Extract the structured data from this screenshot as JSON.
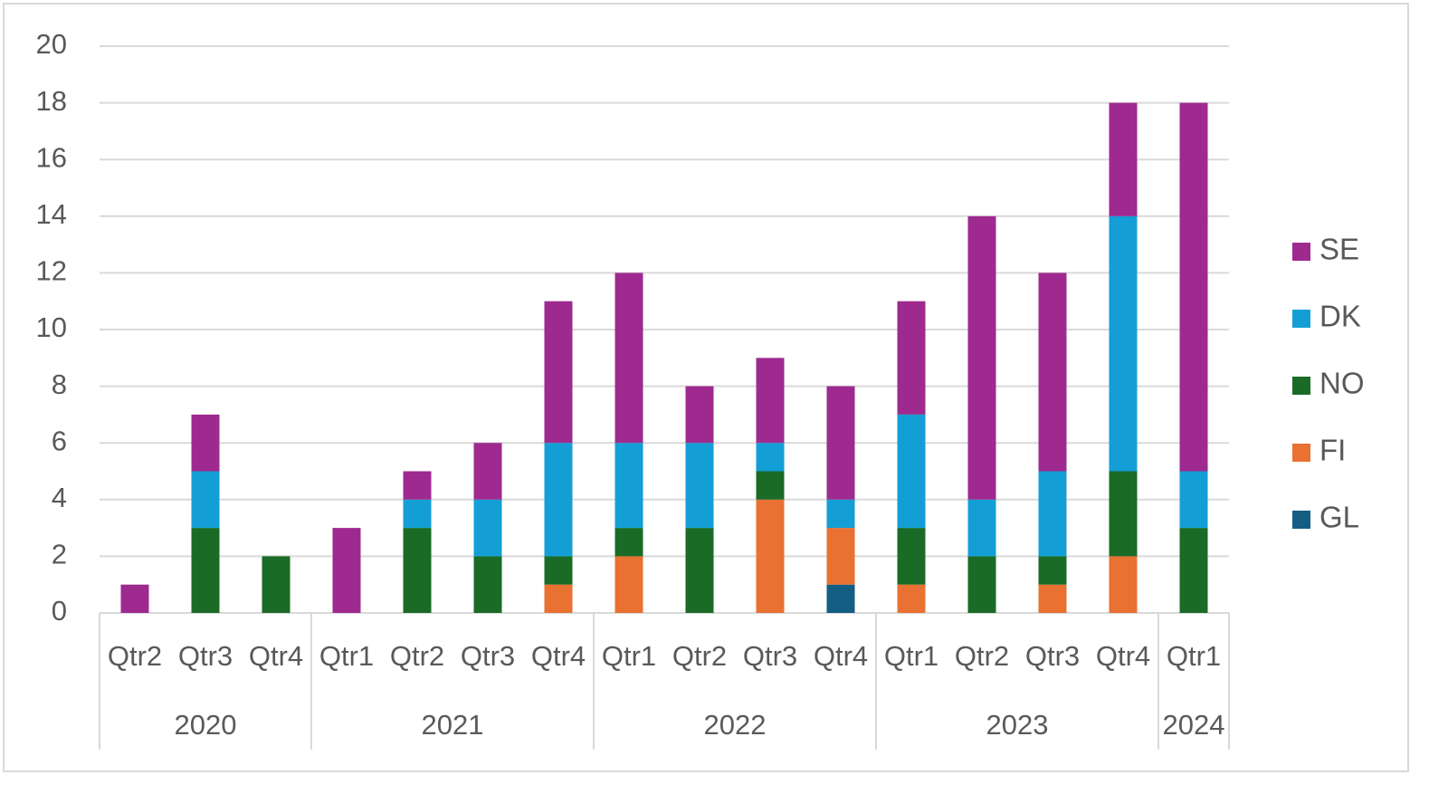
{
  "chart_data": {
    "type": "stacked-bar",
    "groups": [
      {
        "name": "2020",
        "categories": [
          "Qtr2",
          "Qtr3",
          "Qtr4"
        ]
      },
      {
        "name": "2021",
        "categories": [
          "Qtr1",
          "Qtr2",
          "Qtr3",
          "Qtr4"
        ]
      },
      {
        "name": "2022",
        "categories": [
          "Qtr1",
          "Qtr2",
          "Qtr3",
          "Qtr4"
        ]
      },
      {
        "name": "2023",
        "categories": [
          "Qtr1",
          "Qtr2",
          "Qtr3",
          "Qtr4"
        ]
      },
      {
        "name": "2024",
        "categories": [
          "Qtr1"
        ]
      }
    ],
    "series": [
      {
        "name": "GL",
        "color": "#145e84",
        "values": [
          0,
          0,
          0,
          0,
          0,
          0,
          0,
          0,
          0,
          0,
          1,
          0,
          0,
          0,
          0,
          0
        ]
      },
      {
        "name": "FI",
        "color": "#e97132",
        "values": [
          0,
          0,
          0,
          0,
          0,
          0,
          1,
          2,
          0,
          4,
          2,
          1,
          0,
          1,
          2,
          0
        ]
      },
      {
        "name": "NO",
        "color": "#1a6b26",
        "values": [
          0,
          3,
          2,
          0,
          3,
          2,
          1,
          1,
          3,
          1,
          0,
          2,
          2,
          1,
          3,
          3
        ]
      },
      {
        "name": "DK",
        "color": "#139fd6",
        "values": [
          0,
          2,
          0,
          0,
          1,
          2,
          4,
          3,
          3,
          1,
          1,
          4,
          2,
          3,
          9,
          2
        ]
      },
      {
        "name": "SE",
        "color": "#9e2a8f",
        "values": [
          1,
          2,
          0,
          3,
          1,
          2,
          5,
          6,
          2,
          3,
          4,
          4,
          10,
          7,
          4,
          13
        ]
      }
    ],
    "ylim": [
      0,
      20
    ],
    "yticks": [
      0,
      2,
      4,
      6,
      8,
      10,
      12,
      14,
      16,
      18,
      20
    ],
    "grid": true,
    "legend": "right"
  }
}
